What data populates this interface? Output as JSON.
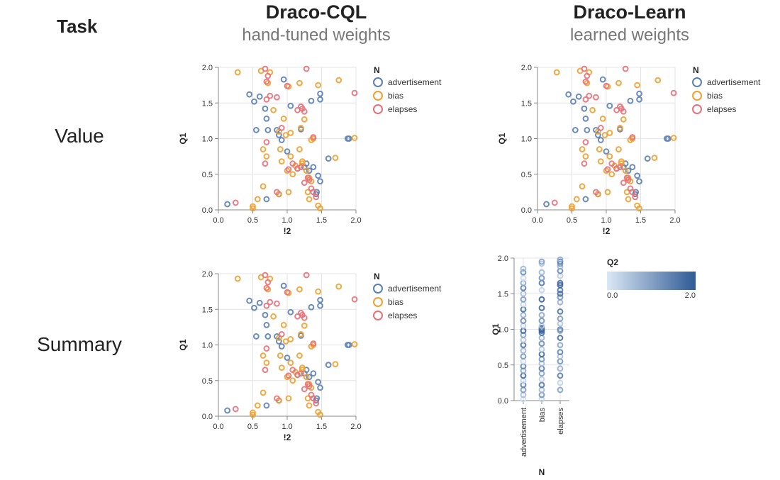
{
  "header": {
    "task_label": "Task",
    "col1_title": "Draco-CQL",
    "col1_subtitle": "hand-tuned weights",
    "col2_title": "Draco-Learn",
    "col2_subtitle": "learned weights"
  },
  "rows": {
    "value_label": "Value",
    "summary_label": "Summary"
  },
  "colors": {
    "advertisement": "#5b7fb5",
    "bias": "#f0a030",
    "elapses": "#e8707a",
    "grid": "#e4e4e4",
    "axis": "#888888",
    "q2_low": "#dbe8f5",
    "q2_high": "#2f5a95"
  },
  "chart_data": [
    {
      "id": "value-cql",
      "type": "scatter",
      "xlabel": "!2",
      "ylabel": "Q1",
      "xlim": [
        0,
        2
      ],
      "ylim": [
        0,
        2
      ],
      "xticks": [
        "0.0",
        "0.5",
        "1.0",
        "1.5",
        "2.0"
      ],
      "yticks": [
        "0.0",
        "0.5",
        "1.0",
        "1.5",
        "2.0"
      ],
      "grid": true,
      "legend_title": "N",
      "legend_position": "right",
      "series": [
        {
          "name": "advertisement",
          "points": [
            [
              0.13,
              0.08
            ],
            [
              0.45,
              1.62
            ],
            [
              0.52,
              1.52
            ],
            [
              0.6,
              1.59
            ],
            [
              0.68,
              1.42
            ],
            [
              0.7,
              1.28
            ],
            [
              0.55,
              1.12
            ],
            [
              0.72,
              1.12
            ],
            [
              0.85,
              1.12
            ],
            [
              0.88,
              1.05
            ],
            [
              0.92,
              0.98
            ],
            [
              1.0,
              0.82
            ],
            [
              1.05,
              1.46
            ],
            [
              0.95,
              1.83
            ],
            [
              1.2,
              1.13
            ],
            [
              1.35,
              1.53
            ],
            [
              1.48,
              1.63
            ],
            [
              1.48,
              1.55
            ],
            [
              1.6,
              0.72
            ],
            [
              1.88,
              1.0
            ],
            [
              1.9,
              1.0
            ],
            [
              1.28,
              0.65
            ],
            [
              1.32,
              0.55
            ],
            [
              1.38,
              0.6
            ],
            [
              1.45,
              0.48
            ],
            [
              1.48,
              0.4
            ],
            [
              1.42,
              0.22
            ],
            [
              1.43,
              0.25
            ],
            [
              0.7,
              0.15
            ],
            [
              0.88,
              0.22
            ],
            [
              1.25,
              0.6
            ]
          ]
        },
        {
          "name": "bias",
          "points": [
            [
              0.28,
              1.93
            ],
            [
              0.62,
              1.95
            ],
            [
              0.75,
              1.93
            ],
            [
              0.72,
              1.78
            ],
            [
              0.8,
              1.4
            ],
            [
              0.95,
              1.28
            ],
            [
              1.02,
              1.73
            ],
            [
              1.18,
              1.78
            ],
            [
              1.45,
              1.75
            ],
            [
              1.75,
              1.82
            ],
            [
              0.88,
              1.1
            ],
            [
              0.98,
              1.05
            ],
            [
              1.05,
              1.08
            ],
            [
              1.25,
              1.27
            ],
            [
              1.2,
              1.15
            ],
            [
              1.38,
              1.0
            ],
            [
              1.35,
              0.98
            ],
            [
              0.65,
              0.85
            ],
            [
              0.7,
              0.75
            ],
            [
              0.9,
              0.85
            ],
            [
              1.05,
              0.75
            ],
            [
              1.18,
              0.85
            ],
            [
              1.12,
              0.62
            ],
            [
              1.15,
              0.58
            ],
            [
              1.22,
              0.65
            ],
            [
              1.28,
              0.55
            ],
            [
              1.32,
              0.45
            ],
            [
              1.35,
              0.4
            ],
            [
              1.0,
              0.55
            ],
            [
              1.08,
              0.5
            ],
            [
              0.65,
              0.33
            ],
            [
              0.92,
              0.68
            ],
            [
              1.7,
              0.73
            ],
            [
              1.98,
              1.01
            ],
            [
              1.02,
              0.25
            ],
            [
              0.88,
              0.22
            ],
            [
              1.3,
              0.25
            ],
            [
              1.32,
              0.15
            ],
            [
              1.45,
              0.06
            ],
            [
              1.48,
              0.02
            ],
            [
              0.5,
              0.05
            ],
            [
              0.57,
              0.15
            ],
            [
              0.5,
              0.02
            ],
            [
              1.22,
              0.68
            ]
          ]
        },
        {
          "name": "elapses",
          "points": [
            [
              0.68,
              1.98
            ],
            [
              0.72,
              1.88
            ],
            [
              0.7,
              1.8
            ],
            [
              1.28,
              1.98
            ],
            [
              1.0,
              1.74
            ],
            [
              0.75,
              1.6
            ],
            [
              0.7,
              1.55
            ],
            [
              0.85,
              1.58
            ],
            [
              1.2,
              1.45
            ],
            [
              1.22,
              1.42
            ],
            [
              1.25,
              1.38
            ],
            [
              0.92,
              1.15
            ],
            [
              1.15,
              1.4
            ],
            [
              1.38,
              1.02
            ],
            [
              1.98,
              1.64
            ],
            [
              0.7,
              0.95
            ],
            [
              0.68,
              0.65
            ],
            [
              1.02,
              0.57
            ],
            [
              1.15,
              0.58
            ],
            [
              1.2,
              0.6
            ],
            [
              1.25,
              0.38
            ],
            [
              1.3,
              0.45
            ],
            [
              1.38,
              0.25
            ],
            [
              1.35,
              0.3
            ],
            [
              0.85,
              0.25
            ],
            [
              1.08,
              0.65
            ],
            [
              0.25,
              0.1
            ],
            [
              1.32,
              0.42
            ],
            [
              1.42,
              0.18
            ]
          ]
        }
      ]
    },
    {
      "id": "value-learn",
      "type": "scatter",
      "xlabel": "!2",
      "ylabel": "Q1",
      "xlim": [
        0,
        2
      ],
      "ylim": [
        0,
        2
      ],
      "xticks": [
        "0.0",
        "0.5",
        "1.0",
        "1.5",
        "2.0"
      ],
      "yticks": [
        "0.0",
        "0.5",
        "1.0",
        "1.5",
        "2.0"
      ],
      "grid": true,
      "legend_title": "N",
      "legend_position": "right",
      "same_data_as": "value-cql"
    },
    {
      "id": "summary-cql",
      "type": "scatter",
      "xlabel": "!2",
      "ylabel": "Q1",
      "xlim": [
        0,
        2
      ],
      "ylim": [
        0,
        2
      ],
      "xticks": [
        "0.0",
        "0.5",
        "1.0",
        "1.5",
        "2.0"
      ],
      "yticks": [
        "0.0",
        "0.5",
        "1.0",
        "1.5",
        "2.0"
      ],
      "grid": true,
      "legend_title": "N",
      "legend_position": "right",
      "same_data_as": "value-cql"
    },
    {
      "id": "summary-learn",
      "type": "strip",
      "xlabel": "N",
      "ylabel": "Q1",
      "categories": [
        "advertisement",
        "bias",
        "elapses"
      ],
      "ylim": [
        0,
        2
      ],
      "yticks": [
        "0.0",
        "0.5",
        "1.0",
        "1.5",
        "2.0"
      ],
      "grid": true,
      "color_legend_title": "Q2",
      "color_legend_min": "0.0",
      "color_legend_max": "2.0",
      "color_domain": [
        0,
        2
      ],
      "series": [
        {
          "name": "advertisement",
          "points": [
            [
              0.02,
              0.1
            ],
            [
              0.08,
              0.6
            ],
            [
              0.15,
              1.1
            ],
            [
              0.22,
              1.5
            ],
            [
              0.28,
              0.3
            ],
            [
              0.35,
              1.8
            ],
            [
              0.42,
              0.9
            ],
            [
              0.48,
              1.4
            ],
            [
              0.55,
              0.2
            ],
            [
              0.62,
              1.2
            ],
            [
              0.7,
              0.7
            ],
            [
              0.78,
              1.6
            ],
            [
              0.85,
              0.5
            ],
            [
              0.92,
              1.0
            ],
            [
              0.98,
              1.9
            ],
            [
              1.05,
              0.4
            ],
            [
              1.12,
              1.3
            ],
            [
              1.2,
              0.8
            ],
            [
              1.28,
              1.7
            ],
            [
              1.35,
              0.3
            ],
            [
              1.42,
              1.1
            ],
            [
              1.5,
              0.6
            ],
            [
              1.58,
              1.5
            ],
            [
              1.65,
              0.9
            ],
            [
              1.72,
              0.2
            ],
            [
              1.8,
              1.3
            ],
            [
              1.85,
              0.7
            ]
          ]
        },
        {
          "name": "bias",
          "points": [
            [
              0.02,
              0.3
            ],
            [
              0.08,
              1.2
            ],
            [
              0.15,
              0.7
            ],
            [
              0.22,
              1.6
            ],
            [
              0.3,
              0.4
            ],
            [
              0.38,
              1.0
            ],
            [
              0.45,
              1.5
            ],
            [
              0.52,
              0.6
            ],
            [
              0.58,
              1.1
            ],
            [
              0.65,
              1.8
            ],
            [
              0.72,
              0.5
            ],
            [
              0.8,
              1.3
            ],
            [
              0.88,
              0.8
            ],
            [
              0.95,
              1.7
            ],
            [
              0.98,
              1.9
            ],
            [
              1.0,
              1.9
            ],
            [
              1.02,
              1.6
            ],
            [
              1.05,
              0.4
            ],
            [
              1.12,
              1.2
            ],
            [
              1.2,
              0.9
            ],
            [
              1.3,
              1.8
            ],
            [
              1.42,
              1.9
            ],
            [
              1.55,
              0.3
            ],
            [
              1.65,
              1.6
            ],
            [
              1.72,
              1.2
            ],
            [
              1.8,
              0.7
            ],
            [
              1.92,
              0.5
            ],
            [
              1.95,
              1.0
            ]
          ]
        },
        {
          "name": "elapses",
          "points": [
            [
              0.15,
              1.0
            ],
            [
              0.25,
              0.3
            ],
            [
              0.35,
              1.5
            ],
            [
              0.45,
              0.8
            ],
            [
              0.55,
              1.2
            ],
            [
              0.62,
              0.6
            ],
            [
              0.68,
              1.4
            ],
            [
              0.78,
              0.9
            ],
            [
              0.88,
              1.7
            ],
            [
              0.98,
              1.0
            ],
            [
              1.0,
              1.3
            ],
            [
              1.08,
              0.5
            ],
            [
              1.15,
              1.1
            ],
            [
              1.25,
              1.6
            ],
            [
              1.38,
              0.8
            ],
            [
              1.45,
              1.2
            ],
            [
              1.5,
              1.7
            ],
            [
              1.55,
              1.6
            ],
            [
              1.62,
              1.9
            ],
            [
              1.65,
              1.8
            ],
            [
              1.75,
              0.4
            ],
            [
              1.82,
              1.3
            ],
            [
              1.88,
              0.7
            ],
            [
              1.92,
              1.1
            ],
            [
              1.95,
              1.5
            ],
            [
              1.98,
              0.9
            ]
          ]
        }
      ]
    }
  ]
}
